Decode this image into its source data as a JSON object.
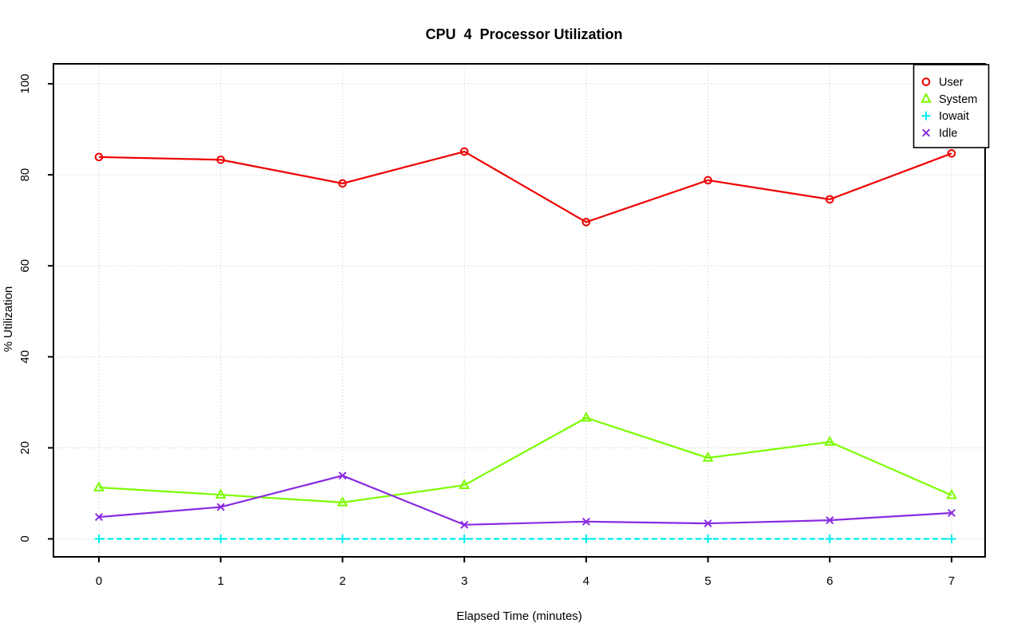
{
  "chart_data": {
    "type": "line",
    "title": "CPU  4  Processor Utilization",
    "xlabel": "Elapsed Time (minutes)",
    "ylabel": "% Utilization",
    "x": [
      0,
      1,
      2,
      3,
      4,
      5,
      6,
      7
    ],
    "xticks": [
      "0",
      "1",
      "2",
      "3",
      "4",
      "5",
      "6",
      "7"
    ],
    "yticks": [
      0,
      20,
      40,
      60,
      80,
      100
    ],
    "xlim": [
      0,
      7
    ],
    "ylim": [
      0,
      100
    ],
    "grid": {
      "style": "dotted",
      "color": "#C6C6C6",
      "vertical": true,
      "horizontal": true
    },
    "legend": {
      "position": "top-right",
      "border_color": "#000000",
      "background": "#ffffff"
    },
    "series": [
      {
        "name": "User",
        "color": "#EE0000",
        "marker": "circle",
        "line": "solid",
        "values": [
          83.9,
          83.3,
          78.1,
          85.1,
          69.6,
          78.8,
          74.6,
          84.7
        ]
      },
      {
        "name": "System",
        "color": "#7CFC00",
        "marker": "triangle",
        "line": "solid",
        "values": [
          11.3,
          9.7,
          8.0,
          11.8,
          26.6,
          17.8,
          21.3,
          9.6
        ]
      },
      {
        "name": "Iowait",
        "color": "#00EEEE",
        "marker": "plus",
        "line": "dashed",
        "values": [
          0,
          0,
          0,
          0,
          0,
          0,
          0,
          0
        ]
      },
      {
        "name": "Idle",
        "color": "#8A2BE2",
        "marker": "x",
        "line": "solid",
        "values": [
          4.8,
          7.0,
          13.9,
          3.1,
          3.8,
          3.4,
          4.1,
          5.7
        ]
      }
    ]
  }
}
